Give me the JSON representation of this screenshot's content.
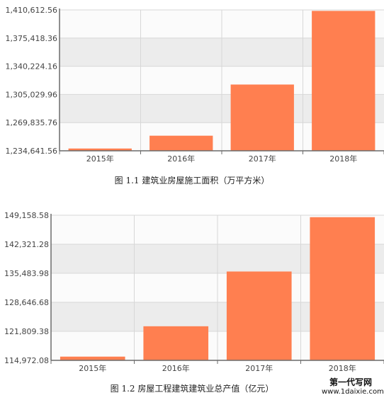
{
  "colors": {
    "bar": "#ff7f50",
    "plot_band_dark": "#ececec",
    "plot_band_light": "#fbfbfb",
    "grid": "#d7d7d7",
    "axis": "#6b6b6b",
    "text": "#444444"
  },
  "chart_data": [
    {
      "type": "bar",
      "categories": [
        "2015年",
        "2016年",
        "2017年",
        "2018年"
      ],
      "values": [
        1237500,
        1253500,
        1317400,
        1409400
      ],
      "y_ticks": [
        "1,234,641.56",
        "1,269,835.76",
        "1,305,029.96",
        "1,340,224.16",
        "1,375,418.36",
        "1,410,612.56"
      ],
      "ylim": [
        1234641.56,
        1410612.56
      ],
      "caption": "图 1.1  建筑业房屋施工面积（万平方米）",
      "grid": true
    },
    {
      "type": "bar",
      "categories": [
        "2015年",
        "2016年",
        "2017年",
        "2018年"
      ],
      "values": [
        115850,
        123000,
        135900,
        148700
      ],
      "y_ticks": [
        "114,972.08",
        "121,809.38",
        "128,646.68",
        "135,483.98",
        "142,321.28",
        "149,158.58"
      ],
      "ylim": [
        114972.08,
        149158.58
      ],
      "caption": "图 1.2  房屋工程建筑建筑业总产值（亿元）",
      "grid": true
    }
  ],
  "watermark": {
    "line1": "第一代写网",
    "line2": "www.1daixie.com"
  }
}
